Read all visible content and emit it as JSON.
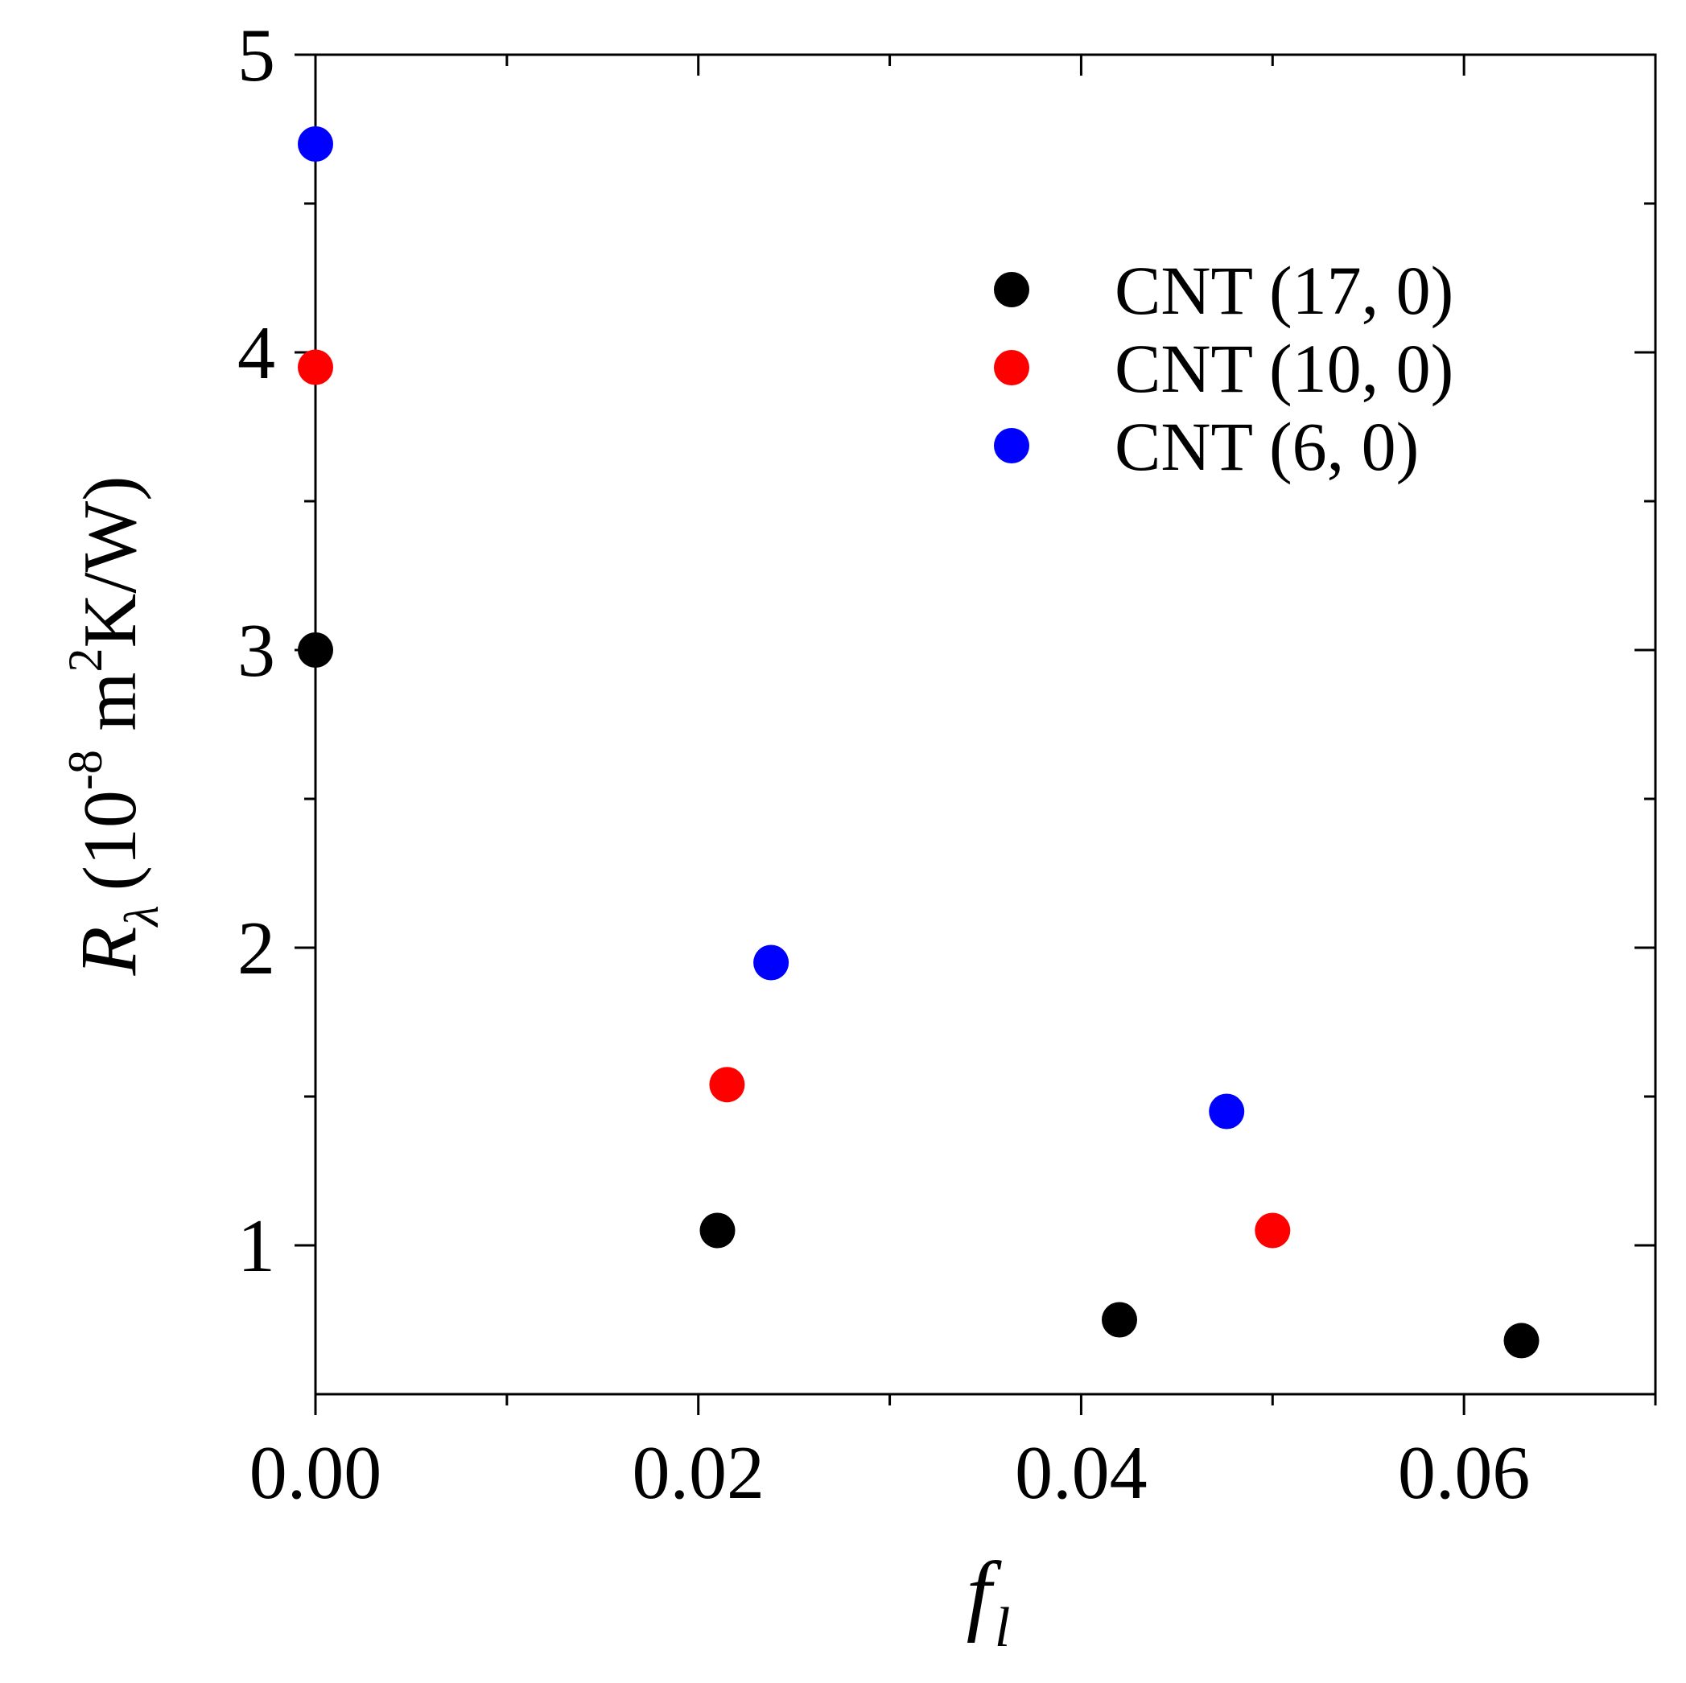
{
  "chart_data": {
    "type": "scatter",
    "title": "",
    "xlabel": "f",
    "xlabel_subscript": "l",
    "ylabel": {
      "symbol": "R",
      "symbol_subscript": "λ",
      "paren_open": "(",
      "base": "10",
      "exp": "-8",
      "unit_m": " m",
      "unit_m_exp": "2",
      "unit_rest": "K/W)"
    },
    "xlim": [
      0,
      0.07
    ],
    "ylim": [
      0.5,
      5
    ],
    "xticks_major": [
      0.0,
      0.02,
      0.04,
      0.06
    ],
    "xtick_labels": [
      "0.00",
      "0.02",
      "0.04",
      "0.06"
    ],
    "xticks_minor": [
      0.01,
      0.03,
      0.05,
      0.07
    ],
    "yticks_major": [
      1,
      2,
      3,
      4,
      5
    ],
    "ytick_labels": [
      "1",
      "2",
      "3",
      "4",
      "5"
    ],
    "yticks_minor": [
      1.5,
      2.5,
      3.5,
      4.5
    ],
    "grid": false,
    "legend_position": "top-right",
    "series": [
      {
        "name": "CNT (17, 0)",
        "color": "#000000",
        "points": [
          {
            "x": 0.0,
            "y": 3.0
          },
          {
            "x": 0.021,
            "y": 1.05
          },
          {
            "x": 0.042,
            "y": 0.75
          },
          {
            "x": 0.063,
            "y": 0.68
          }
        ]
      },
      {
        "name": "CNT (10, 0)",
        "color": "#ff0000",
        "points": [
          {
            "x": 0.0,
            "y": 3.95
          },
          {
            "x": 0.0215,
            "y": 1.54
          },
          {
            "x": 0.05,
            "y": 1.05
          }
        ]
      },
      {
        "name": "CNT (6, 0)",
        "color": "#0000ff",
        "points": [
          {
            "x": 0.0,
            "y": 4.7
          },
          {
            "x": 0.0238,
            "y": 1.95
          },
          {
            "x": 0.0476,
            "y": 1.45
          }
        ]
      }
    ]
  }
}
